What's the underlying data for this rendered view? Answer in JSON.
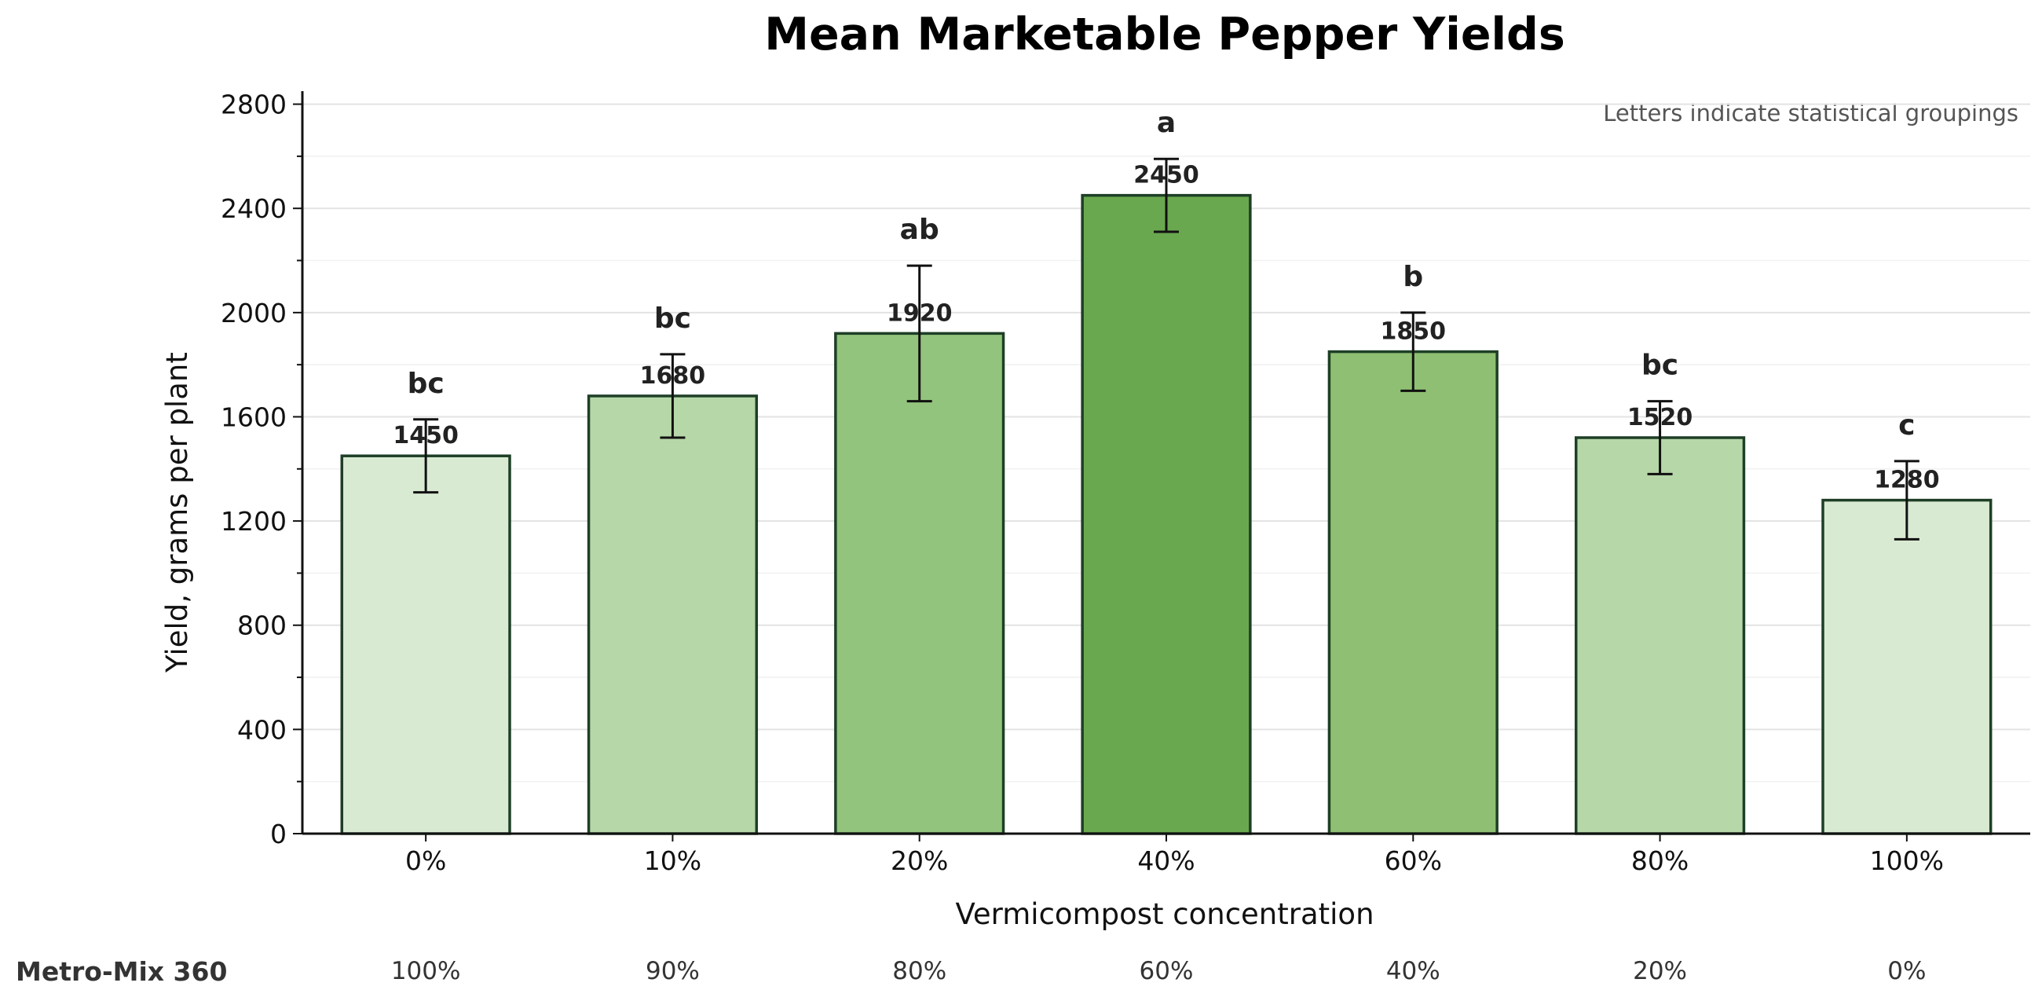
{
  "chart_data": {
    "type": "bar",
    "title": "Mean Marketable Pepper Yields",
    "xlabel": "Vermicompost concentration",
    "ylabel": "Yield, grams per plant",
    "categories": [
      "0%",
      "10%",
      "20%",
      "40%",
      "60%",
      "80%",
      "100%"
    ],
    "values": [
      1450,
      1680,
      1920,
      2450,
      1850,
      1520,
      1280
    ],
    "value_labels": [
      "1450",
      "1680",
      "1920",
      "2450",
      "1850",
      "1520",
      "1280"
    ],
    "error": [
      140,
      160,
      260,
      140,
      150,
      140,
      150
    ],
    "groups": [
      "bc",
      "bc",
      "ab",
      "a",
      "b",
      "bc",
      "c"
    ],
    "bar_colors": [
      "#d9ead3",
      "#b6d7a8",
      "#93c47d",
      "#6aa84f",
      "#8fbf72",
      "#b6d7a8",
      "#d9ead3"
    ],
    "edge_color": "#1e3f26",
    "ylim": [
      0,
      2850
    ],
    "yticks": [
      0,
      400,
      800,
      1200,
      1600,
      2000,
      2400,
      2800
    ],
    "grid": true,
    "annotation": "Letters indicate statistical groupings",
    "secondary_axis": {
      "label": "Metro-Mix 360",
      "values": [
        "100%",
        "90%",
        "80%",
        "60%",
        "40%",
        "20%",
        "0%"
      ]
    }
  }
}
